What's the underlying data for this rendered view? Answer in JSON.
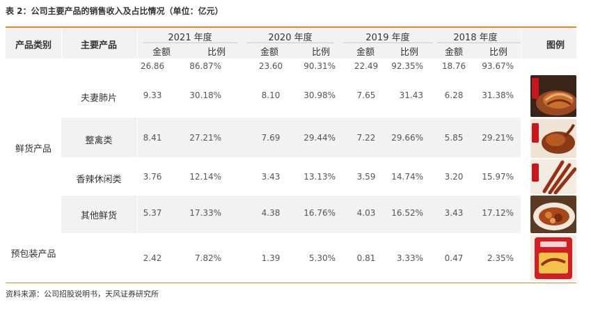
{
  "caption": "表 2：公司主要产品的销售收入及占比情况（单位：亿元）",
  "header": {
    "category_label": "产品类别",
    "product_label": "主要产品",
    "legend_label": "图例",
    "years": [
      {
        "year": "2021 年度",
        "amount": "金额",
        "ratio": "比例"
      },
      {
        "year": "2020 年度",
        "amount": "金额",
        "ratio": "比例"
      },
      {
        "year": "2019 年度",
        "amount": "金额",
        "ratio": "比例"
      },
      {
        "year": "2018 年度",
        "amount": "金额",
        "ratio": "比例"
      }
    ]
  },
  "categories": {
    "fresh": "鲜货产品",
    "packaged": "预包装产品"
  },
  "rows": [
    {
      "product": "",
      "values": [
        "26.86",
        "86.87%",
        "23.60",
        "90.31%",
        "22.49",
        "92.35%",
        "18.76",
        "93.67%"
      ]
    },
    {
      "product": "夫妻肺片",
      "values": [
        "9.33",
        "30.18%",
        "8.10",
        "30.98%",
        "7.65",
        "31.43",
        "6.28",
        "31.38%"
      ]
    },
    {
      "product": "整禽类",
      "values": [
        "8.41",
        "27.21%",
        "7.69",
        "29.44%",
        "7.22",
        "29.66%",
        "5.85",
        "29.21%"
      ]
    },
    {
      "product": "香辣休闲类",
      "values": [
        "3.76",
        "12.14%",
        "3.43",
        "13.13%",
        "3.59",
        "14.74%",
        "3.20",
        "15.97%"
      ]
    },
    {
      "product": "其他鲜货",
      "values": [
        "5.37",
        "17.33%",
        "4.38",
        "16.76%",
        "4.03",
        "16.52%",
        "3.43",
        "17.12%"
      ]
    },
    {
      "product": "",
      "values": [
        "2.42",
        "7.82%",
        "1.39",
        "5.30%",
        "0.81",
        "3.33%",
        "0.47",
        "2.35%"
      ]
    }
  ],
  "legend_images": [
    "sliced-beef-dish",
    "braised-duck",
    "spicy-skewers",
    "mixed-braised-platter",
    "packaged-snack-bag"
  ],
  "source": "资料来源：公司招股说明书，天风证券研究所",
  "colors": {
    "accent": "#e08a2a",
    "band": "#f2f2f2",
    "brand_red": "#c8161d"
  }
}
